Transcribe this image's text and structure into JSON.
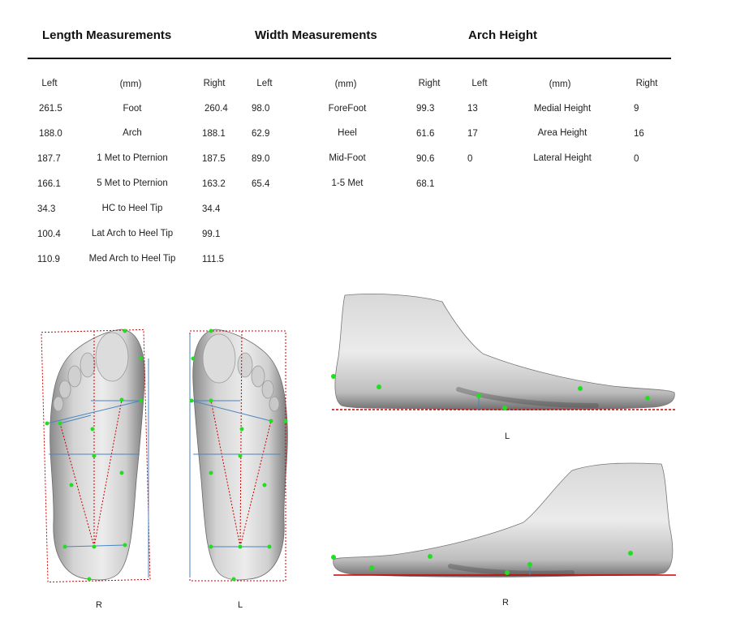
{
  "headers": {
    "length": "Length Measurements",
    "width": "Width Measurements",
    "arch": "Arch Height"
  },
  "length": {
    "col_left": "Left",
    "col_unit": "(mm)",
    "col_right": "Right",
    "rows": [
      {
        "left": "261.5",
        "label": "Foot",
        "right": "260.4"
      },
      {
        "left": "188.0",
        "label": "Arch",
        "right": "188.1"
      },
      {
        "left": "187.7",
        "label": "1 Met to Pternion",
        "right": "187.5"
      },
      {
        "left": "166.1",
        "label": "5 Met to Pternion",
        "right": "163.2"
      },
      {
        "left": "34.3",
        "label": "HC to Heel Tip",
        "right": "34.4"
      },
      {
        "left": "100.4",
        "label": "Lat Arch to Heel Tip",
        "right": "99.1"
      },
      {
        "left": "110.9",
        "label": "Med Arch to Heel Tip",
        "right": "111.5"
      }
    ]
  },
  "width": {
    "col_left": "Left",
    "col_unit": "(mm)",
    "col_right": "Right",
    "rows": [
      {
        "left": "98.0",
        "label": "ForeFoot",
        "right": "99.3"
      },
      {
        "left": "62.9",
        "label": "Heel",
        "right": "61.6"
      },
      {
        "left": "89.0",
        "label": "Mid-Foot",
        "right": "90.6"
      },
      {
        "left": "65.4",
        "label": "1-5 Met",
        "right": "68.1"
      }
    ]
  },
  "arch": {
    "col_left": "Left",
    "col_unit": "(mm)",
    "col_right": "Right",
    "rows": [
      {
        "left": "13",
        "label": "Medial Height",
        "right": "9"
      },
      {
        "left": "17",
        "label": "Area Height",
        "right": "16"
      },
      {
        "left": "0",
        "label": "Lateral Height",
        "right": "0"
      }
    ]
  },
  "figures": {
    "plantar_right_label": "R",
    "plantar_left_label": "L",
    "side_left_label": "L",
    "side_right_label": "R"
  },
  "colors": {
    "marker": "#22dd22",
    "guide_dotted": "#cc0000",
    "guide_line": "#4a86c0",
    "ground": "#cc0000"
  }
}
